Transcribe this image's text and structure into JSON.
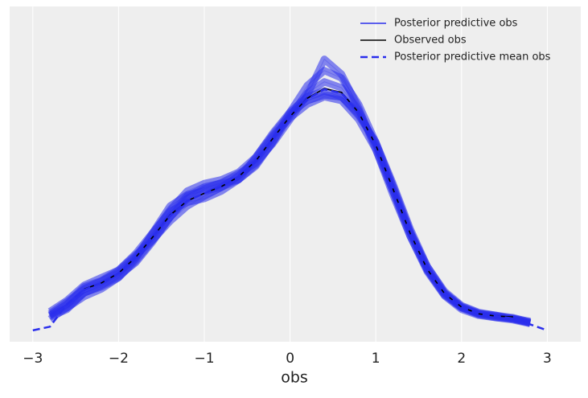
{
  "chart_data": {
    "type": "line",
    "xlabel": "obs",
    "x": [
      -3,
      -2.8,
      -2.6,
      -2.4,
      -2.2,
      -2,
      -1.8,
      -1.6,
      -1.4,
      -1.2,
      -1,
      -0.8,
      -0.6,
      -0.4,
      -0.2,
      0,
      0.2,
      0.4,
      0.6,
      0.8,
      1,
      1.2,
      1.4,
      1.6,
      1.8,
      2,
      2.2,
      2.4,
      2.6,
      2.8,
      3
    ],
    "series": [
      {
        "name": "Posterior predictive obs",
        "color": "#2a2eec",
        "style": "solid",
        "samples": [
          [
            null,
            0.02,
            0.03,
            0.045,
            0.055,
            0.07,
            0.095,
            0.13,
            0.165,
            0.18,
            0.185,
            0.19,
            0.2,
            0.22,
            0.25,
            0.29,
            0.325,
            0.345,
            0.335,
            0.3,
            0.25,
            0.19,
            0.13,
            0.08,
            0.047,
            0.03,
            0.022,
            0.018,
            0.016,
            0.012,
            null
          ],
          [
            null,
            0.025,
            0.04,
            0.06,
            0.07,
            0.08,
            0.1,
            0.12,
            0.145,
            0.165,
            0.178,
            0.19,
            0.205,
            0.228,
            0.258,
            0.282,
            0.3,
            0.31,
            0.305,
            0.28,
            0.24,
            0.185,
            0.13,
            0.085,
            0.052,
            0.033,
            0.024,
            0.02,
            0.015,
            0.01,
            null
          ],
          [
            null,
            0.018,
            0.028,
            0.05,
            0.06,
            0.072,
            0.09,
            0.118,
            0.15,
            0.178,
            0.19,
            0.195,
            0.2,
            0.218,
            0.25,
            0.285,
            0.315,
            0.33,
            0.322,
            0.292,
            0.245,
            0.185,
            0.125,
            0.078,
            0.046,
            0.028,
            0.02,
            0.017,
            0.015,
            0.01,
            null
          ],
          [
            null,
            0.02,
            0.035,
            0.058,
            0.066,
            0.08,
            0.102,
            0.13,
            0.158,
            0.17,
            0.175,
            0.185,
            0.2,
            0.23,
            0.262,
            0.29,
            0.31,
            0.318,
            0.31,
            0.285,
            0.25,
            0.195,
            0.135,
            0.085,
            0.05,
            0.032,
            0.023,
            0.02,
            0.017,
            0.011,
            null
          ],
          [
            null,
            0.015,
            0.03,
            0.05,
            0.058,
            0.07,
            0.092,
            0.12,
            0.15,
            0.175,
            0.188,
            0.196,
            0.208,
            0.222,
            0.248,
            0.28,
            0.312,
            0.36,
            0.34,
            0.295,
            0.24,
            0.18,
            0.125,
            0.08,
            0.048,
            0.03,
            0.021,
            0.017,
            0.014,
            0.009,
            null
          ],
          [
            null,
            0.022,
            0.038,
            0.055,
            0.065,
            0.078,
            0.098,
            0.128,
            0.16,
            0.185,
            0.195,
            0.2,
            0.21,
            0.23,
            0.26,
            0.288,
            0.305,
            0.312,
            0.31,
            0.288,
            0.248,
            0.192,
            0.132,
            0.082,
            0.05,
            0.031,
            0.022,
            0.019,
            0.016,
            0.01,
            null
          ]
        ]
      },
      {
        "name": "Observed obs",
        "color": "#000000",
        "style": "solid",
        "values": [
          null,
          null,
          null,
          0.055,
          0.063,
          0.076,
          0.097,
          0.124,
          0.153,
          0.172,
          0.182,
          0.191,
          0.204,
          0.225,
          0.255,
          0.284,
          0.308,
          0.321,
          0.316,
          0.289,
          0.246,
          0.188,
          0.129,
          0.081,
          0.049,
          0.031,
          0.022,
          0.019,
          0.018,
          null,
          null
        ]
      },
      {
        "name": "Posterior predictive mean obs",
        "color": "#2a2eec",
        "style": "dashed",
        "values": [
          0,
          0.005,
          0.035,
          0.054,
          0.063,
          0.076,
          0.097,
          0.124,
          0.152,
          0.172,
          0.182,
          0.191,
          0.204,
          0.225,
          0.255,
          0.284,
          0.307,
          0.32,
          0.315,
          0.289,
          0.246,
          0.188,
          0.129,
          0.081,
          0.049,
          0.031,
          0.022,
          0.019,
          0.016,
          0.008,
          0
        ]
      }
    ],
    "xlim": [
      -3.27,
      3.39
    ],
    "ylim": [
      -0.015,
      0.43
    ],
    "xticks": [
      {
        "value": -3,
        "label": "−3"
      },
      {
        "value": -2,
        "label": "−2"
      },
      {
        "value": -1,
        "label": "−1"
      },
      0,
      1,
      2,
      3
    ],
    "grid": true,
    "legend": "upper right"
  }
}
